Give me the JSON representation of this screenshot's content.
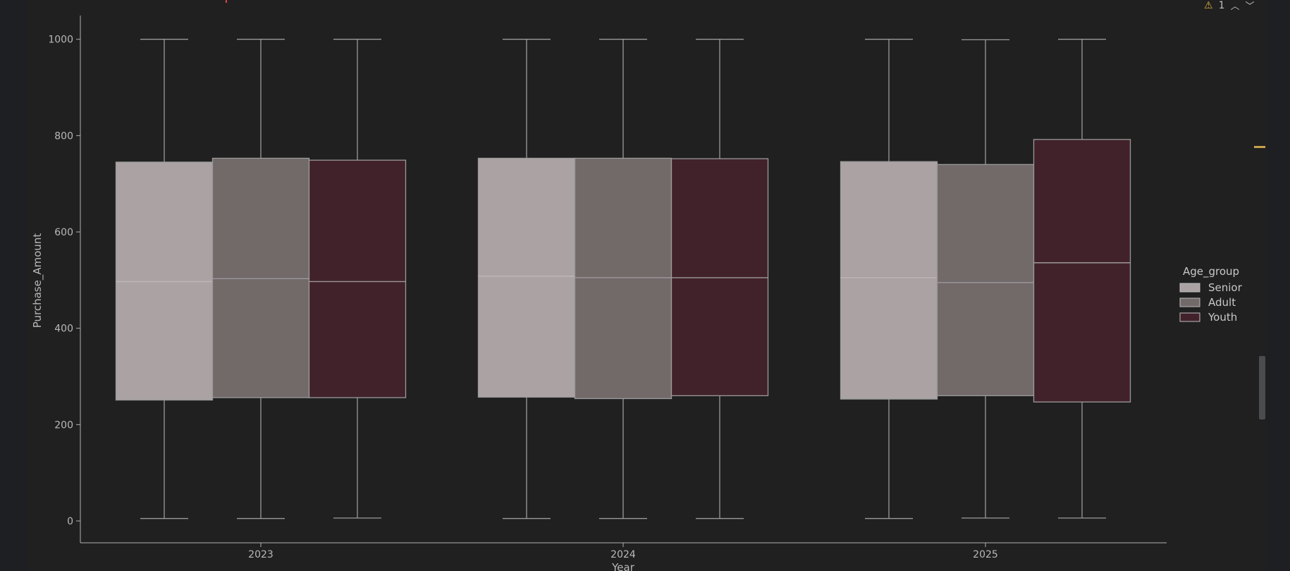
{
  "toolbar": {
    "warning_count": "1",
    "warning_icon": "warning-icon",
    "prev_icon": "chevron-up-icon",
    "next_icon": "chevron-down-icon"
  },
  "colors": {
    "Senior": "#aba3a3",
    "Adult": "#726969",
    "Youth": "#42222a",
    "line": "#9a9a9a",
    "median_Senior": "#bdb6b6",
    "accent_marker": "#c9a14a"
  },
  "chart_data": {
    "type": "box",
    "xlabel": "Year",
    "ylabel": "Purchase_Amount",
    "categories": [
      "2023",
      "2024",
      "2025"
    ],
    "ylim": [
      -45,
      1050
    ],
    "yticks": [
      0,
      200,
      400,
      600,
      800,
      1000
    ],
    "legend": {
      "title": "Age_group",
      "entries": [
        "Senior",
        "Adult",
        "Youth"
      ],
      "position": "right"
    },
    "series": [
      {
        "name": "Senior",
        "boxes": [
          {
            "min": 5,
            "q1": 251,
            "median": 497,
            "q3": 745,
            "max": 1000
          },
          {
            "min": 5,
            "q1": 257,
            "median": 508,
            "q3": 753,
            "max": 1000
          },
          {
            "min": 5,
            "q1": 253,
            "median": 505,
            "q3": 746,
            "max": 1000
          }
        ]
      },
      {
        "name": "Adult",
        "boxes": [
          {
            "min": 5,
            "q1": 256,
            "median": 503,
            "q3": 753,
            "max": 1000
          },
          {
            "min": 5,
            "q1": 254,
            "median": 505,
            "q3": 753,
            "max": 1000
          },
          {
            "min": 6,
            "q1": 260,
            "median": 495,
            "q3": 740,
            "max": 999
          }
        ]
      },
      {
        "name": "Youth",
        "boxes": [
          {
            "min": 6,
            "q1": 256,
            "median": 497,
            "q3": 749,
            "max": 1000
          },
          {
            "min": 5,
            "q1": 260,
            "median": 505,
            "q3": 752,
            "max": 1000
          },
          {
            "min": 6,
            "q1": 247,
            "median": 536,
            "q3": 792,
            "max": 1000
          }
        ]
      }
    ]
  }
}
